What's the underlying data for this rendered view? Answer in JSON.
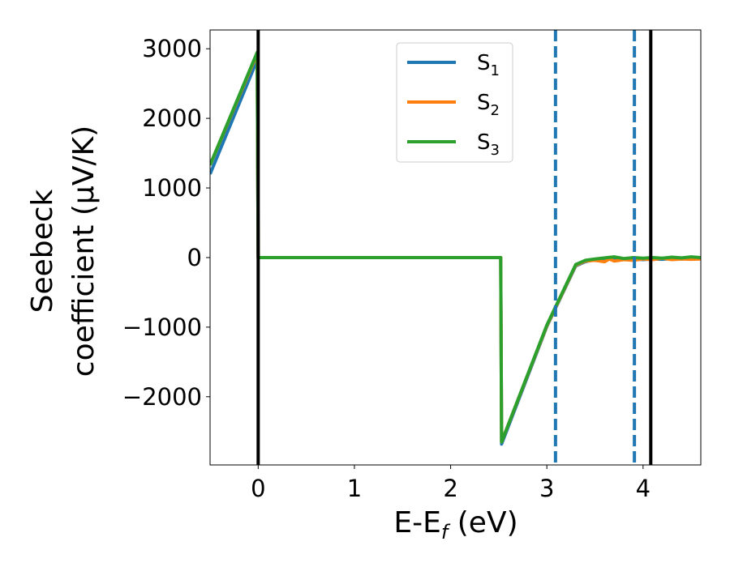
{
  "chart_data": {
    "type": "line",
    "xlabel": {
      "main": "E-E",
      "sub": "f",
      "unit": " (eV)"
    },
    "ylabel": {
      "line1": "Seebeck",
      "line2": "coefficient  (μV/K)"
    },
    "xlim": [
      -0.5,
      4.6
    ],
    "ylim": [
      -2980,
      3270
    ],
    "xticks": [
      0,
      1,
      2,
      3,
      4
    ],
    "yticks": [
      -2000,
      -1000,
      0,
      1000,
      2000,
      3000
    ],
    "ytick_labels": [
      "−2000",
      "−1000",
      "0",
      "1000",
      "2000",
      "3000"
    ],
    "grid": false,
    "legend_position": "top-center",
    "series": [
      {
        "name": "S",
        "sub": "1",
        "color": "#1f77b4",
        "points": [
          [
            -0.5,
            1200
          ],
          [
            -0.01,
            2840
          ],
          [
            0.0,
            0
          ],
          [
            0.5,
            0
          ],
          [
            1.0,
            0
          ],
          [
            1.5,
            0
          ],
          [
            2.0,
            0
          ],
          [
            2.52,
            0
          ],
          [
            2.53,
            -2680
          ],
          [
            3.0,
            -990
          ],
          [
            3.3,
            -120
          ],
          [
            3.4,
            -60
          ],
          [
            3.5,
            -30
          ],
          [
            3.6,
            -10
          ],
          [
            3.7,
            -20
          ],
          [
            3.8,
            -30
          ],
          [
            3.9,
            -20
          ],
          [
            4.0,
            -30
          ],
          [
            4.1,
            -20
          ],
          [
            4.2,
            -25
          ],
          [
            4.3,
            -15
          ],
          [
            4.4,
            -20
          ],
          [
            4.5,
            -10
          ],
          [
            4.6,
            -15
          ]
        ]
      },
      {
        "name": "S",
        "sub": "2",
        "color": "#ff7f0e",
        "points": [
          [
            -0.5,
            1330
          ],
          [
            -0.01,
            2930
          ],
          [
            0.0,
            0
          ],
          [
            0.5,
            0
          ],
          [
            1.0,
            0
          ],
          [
            1.5,
            0
          ],
          [
            2.0,
            0
          ],
          [
            2.52,
            0
          ],
          [
            2.53,
            -2650
          ],
          [
            3.0,
            -980
          ],
          [
            3.3,
            -110
          ],
          [
            3.4,
            -50
          ],
          [
            3.5,
            -40
          ],
          [
            3.6,
            -60
          ],
          [
            3.65,
            -20
          ],
          [
            3.7,
            -50
          ],
          [
            3.8,
            -30
          ],
          [
            3.9,
            -40
          ],
          [
            4.0,
            -20
          ],
          [
            4.1,
            -30
          ],
          [
            4.2,
            -10
          ],
          [
            4.3,
            -30
          ],
          [
            4.4,
            -20
          ],
          [
            4.5,
            -25
          ],
          [
            4.6,
            -20
          ]
        ]
      },
      {
        "name": "S",
        "sub": "3",
        "color": "#2ca02c",
        "points": [
          [
            -0.5,
            1330
          ],
          [
            -0.01,
            2950
          ],
          [
            0.0,
            0
          ],
          [
            0.5,
            0
          ],
          [
            1.0,
            0
          ],
          [
            1.5,
            0
          ],
          [
            2.0,
            0
          ],
          [
            2.52,
            0
          ],
          [
            2.53,
            -2650
          ],
          [
            3.0,
            -970
          ],
          [
            3.3,
            -100
          ],
          [
            3.4,
            -40
          ],
          [
            3.5,
            -20
          ],
          [
            3.6,
            -5
          ],
          [
            3.7,
            10
          ],
          [
            3.8,
            -15
          ],
          [
            3.9,
            0
          ],
          [
            4.0,
            -10
          ],
          [
            4.1,
            0
          ],
          [
            4.2,
            -10
          ],
          [
            4.3,
            5
          ],
          [
            4.4,
            -5
          ],
          [
            4.5,
            10
          ],
          [
            4.6,
            0
          ]
        ]
      }
    ],
    "vlines": [
      {
        "x": 0.0,
        "style": "solid",
        "color": "#000000"
      },
      {
        "x": 4.08,
        "style": "solid",
        "color": "#000000"
      },
      {
        "x": 3.09,
        "style": "dashed",
        "color": "#1f77b4"
      },
      {
        "x": 3.91,
        "style": "dashed",
        "color": "#1f77b4"
      }
    ]
  }
}
